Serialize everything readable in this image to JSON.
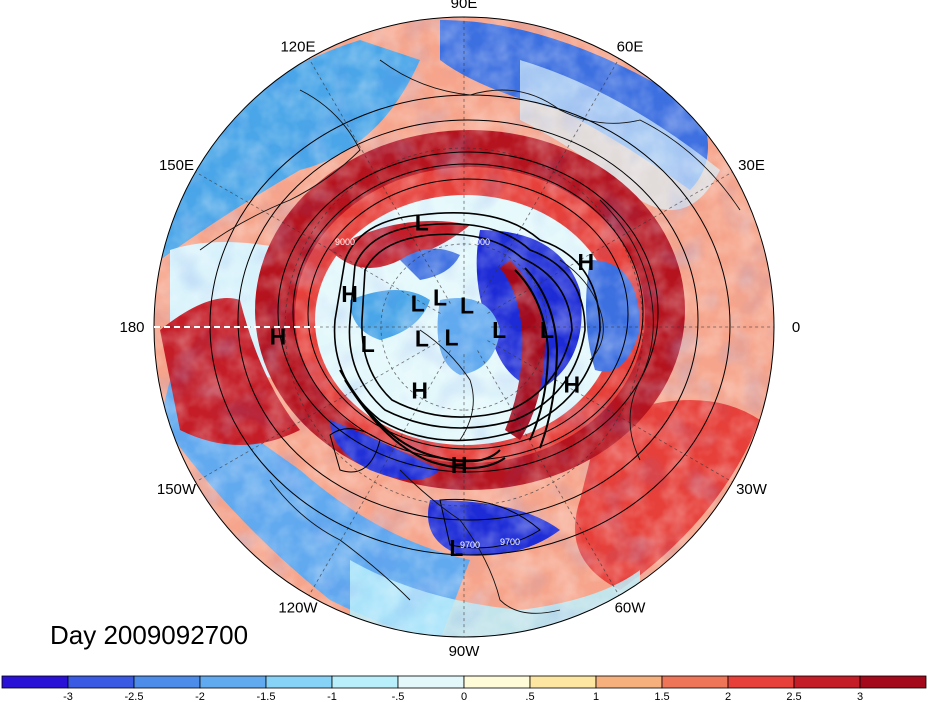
{
  "map": {
    "projection": "north-polar-stereographic",
    "longitude_labels": [
      {
        "text": "90E",
        "lon": 90
      },
      {
        "text": "60E",
        "lon": 60
      },
      {
        "text": "30E",
        "lon": 30
      },
      {
        "text": "0",
        "lon": 0
      },
      {
        "text": "30W",
        "lon": -30
      },
      {
        "text": "60W",
        "lon": -60
      },
      {
        "text": "90W",
        "lon": -90
      },
      {
        "text": "120W",
        "lon": -120
      },
      {
        "text": "150W",
        "lon": -150
      },
      {
        "text": "180",
        "lon": 180
      },
      {
        "text": "150E",
        "lon": 150
      },
      {
        "text": "120E",
        "lon": 120
      }
    ],
    "pressure_centers": [
      {
        "label": "L",
        "lon": 112,
        "lat": 50
      },
      {
        "label": "H",
        "lon": 28,
        "lat": 42
      },
      {
        "label": "H",
        "lon": -177,
        "lat": 28
      },
      {
        "label": "H",
        "lon": 164,
        "lat": 48
      },
      {
        "label": "L",
        "lon": 153,
        "lat": 71
      },
      {
        "label": "L",
        "lon": 129,
        "lat": 76
      },
      {
        "label": "L",
        "lon": 82,
        "lat": 82
      },
      {
        "label": "L",
        "lon": -170,
        "lat": 55
      },
      {
        "label": "L",
        "lon": -165,
        "lat": 74
      },
      {
        "label": "L",
        "lon": -140,
        "lat": 84
      },
      {
        "label": "L",
        "lon": -5,
        "lat": 77
      },
      {
        "label": "L",
        "lon": -2,
        "lat": 60
      },
      {
        "label": "H",
        "lon": -125,
        "lat": 62
      },
      {
        "label": "H",
        "lon": -28,
        "lat": 47
      },
      {
        "label": "H",
        "lon": -92,
        "lat": 42
      },
      {
        "label": "L",
        "lon": -92,
        "lat": 19
      }
    ],
    "contour_labels": [
      "9000",
      "9000",
      "9700",
      "9700"
    ],
    "ring_colors": {
      "deep_negative": "#1d2bd6",
      "negative": "#4aa6e8",
      "weak": "#d8f2fb",
      "positive": "#f2473a",
      "strong_positive": "#b5131e"
    }
  },
  "title": {
    "day_label": "Day 2009092700"
  },
  "colorbar": {
    "colors": [
      "#2a11d6",
      "#3a5ae3",
      "#4d8ce8",
      "#62aaef",
      "#87d2f7",
      "#b9eefb",
      "#e3f8fb",
      "#fefbd9",
      "#fde6a1",
      "#f5b07d",
      "#ef7558",
      "#e7403a",
      "#c41d27",
      "#a3091a"
    ],
    "tick_labels": [
      "-3",
      "-2.5",
      "-2",
      "-1.5",
      "-1",
      "-.5",
      "0",
      ".5",
      "1",
      "1.5",
      "2",
      "2.5",
      "3"
    ]
  }
}
